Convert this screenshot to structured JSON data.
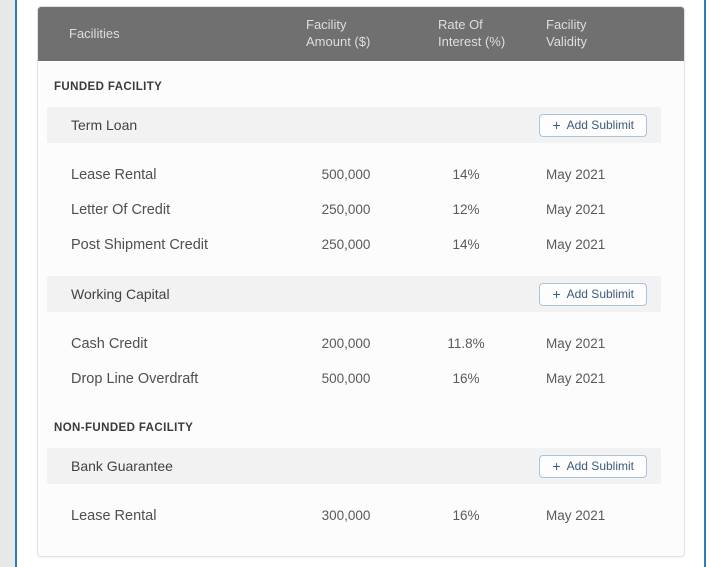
{
  "colors": {
    "accent_line_blue": "#2e7eb5",
    "header_bg": "#707070",
    "group_row_bg": "#f2f2f2",
    "button_border_blue": "#a8c4de",
    "button_text_blue": "#3c5a7a"
  },
  "header": {
    "facilities": "Facilities",
    "amount_line1": "Facility",
    "amount_line2": "Amount ($)",
    "rate_line1": "Rate Of",
    "rate_line2": "Interest (%)",
    "validity_line1": "Facility",
    "validity_line2": "Validity"
  },
  "add_sublimit": {
    "icon": "+",
    "label": "Add Sublimit"
  },
  "sections": [
    {
      "label": "FUNDED FACILITY",
      "groups": [
        {
          "name": "Term Loan",
          "rows": [
            {
              "name": "Lease Rental",
              "amount": "500,000",
              "rate": "14%",
              "validity": "May 2021"
            },
            {
              "name": "Letter Of Credit",
              "amount": "250,000",
              "rate": "12%",
              "validity": "May 2021"
            },
            {
              "name": "Post Shipment Credit",
              "amount": "250,000",
              "rate": "14%",
              "validity": "May 2021"
            }
          ]
        },
        {
          "name": "Working Capital",
          "rows": [
            {
              "name": "Cash Credit",
              "amount": "200,000",
              "rate": "11.8%",
              "validity": "May 2021"
            },
            {
              "name": "Drop Line Overdraft",
              "amount": "500,000",
              "rate": "16%",
              "validity": "May 2021"
            }
          ]
        }
      ]
    },
    {
      "label": "NON-FUNDED FACILITY",
      "groups": [
        {
          "name": "Bank Guarantee",
          "rows": [
            {
              "name": "Lease Rental",
              "amount": "300,000",
              "rate": "16%",
              "validity": "May 2021"
            }
          ]
        }
      ]
    }
  ]
}
